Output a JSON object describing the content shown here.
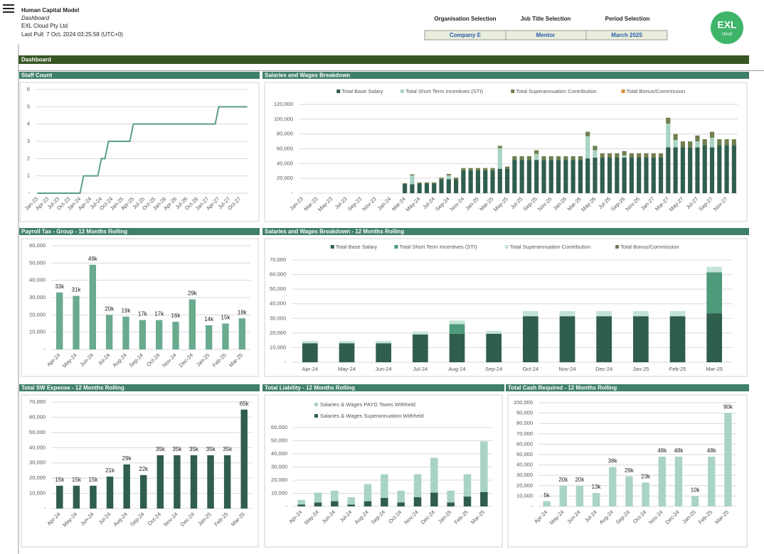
{
  "header": {
    "title": "Human Capital Model",
    "subtitle": "Dashboard",
    "company": "EXL Cloud Pty Ltd",
    "last_pull": "Last Pull: 7 Oct, 2024 03:25:58 (UTC+0)"
  },
  "selections": [
    {
      "label": "Organisation Selection",
      "value": "Company E"
    },
    {
      "label": "Job Title Selection",
      "value": "Mentor"
    },
    {
      "label": "Period Selection",
      "value": "March 2025"
    }
  ],
  "logo": {
    "text": "EXL",
    "subtext": "cloud"
  },
  "section": "Dashboard",
  "chart_data": [
    {
      "type": "line",
      "title": "Staff Count",
      "color": "#5a9e86",
      "grid": true,
      "categories": [
        "Jan-23",
        null,
        null,
        "Apr-23",
        null,
        null,
        "Jul-23",
        null,
        null,
        "Oct-23",
        null,
        null,
        "Jan-24",
        null,
        null,
        "Apr-24",
        null,
        null,
        "Jul-24",
        null,
        null,
        "Oct-24",
        null,
        null,
        "Jan-25",
        null,
        null,
        "Apr-25",
        null,
        null,
        "Jul-25",
        null,
        null,
        "Oct-25",
        null,
        null,
        "Jan-26",
        null,
        null,
        "Apr-26",
        null,
        null,
        "Jul-26",
        null,
        null,
        "Oct-26",
        null,
        null,
        "Jan-27",
        null,
        null,
        "Apr-27",
        null,
        null,
        "Jul-27",
        null,
        null,
        "Oct-27",
        null,
        null
      ],
      "values": [
        0,
        0,
        0,
        0,
        0,
        0,
        0,
        0,
        0,
        0,
        0,
        0,
        0,
        1,
        1,
        1,
        1,
        1,
        2,
        2,
        3,
        3,
        3,
        3,
        3,
        3,
        3,
        4,
        4,
        4,
        4,
        4,
        4,
        4,
        4,
        4,
        4,
        4,
        4,
        4,
        4,
        4,
        4,
        4,
        4,
        4,
        4,
        4,
        4,
        4,
        4,
        5,
        5,
        5,
        5,
        5,
        5,
        5,
        5,
        5
      ],
      "ylim": [
        0,
        6
      ],
      "yticks": [
        {
          "value": 0,
          "label": "-"
        },
        1,
        2,
        3,
        4,
        5,
        6
      ]
    },
    {
      "type": "stacked_bar",
      "title": "Salaries and Wages Breakdown",
      "grid": true,
      "legend": "top",
      "categories": [
        "Jan-23",
        null,
        "Mar-23",
        null,
        "May-23",
        null,
        "Jul-23",
        null,
        "Sep-23",
        null,
        "Nov-23",
        null,
        "Jan-24",
        null,
        "Mar-24",
        null,
        "May-24",
        null,
        "Jul-24",
        null,
        "Sep-24",
        null,
        "Nov-24",
        null,
        "Jan-25",
        null,
        "Mar-25",
        null,
        "May-25",
        null,
        "Jul-25",
        null,
        "Sep-25",
        null,
        "Nov-25",
        null,
        "Jan-26",
        null,
        "Mar-26",
        null,
        "May-26",
        null,
        "Jul-26",
        null,
        "Sep-26",
        null,
        "Nov-26",
        null,
        "Jan-27",
        null,
        "Mar-27",
        null,
        "May-27",
        null,
        "Jul-27",
        null,
        "Sep-27",
        null,
        "Nov-27",
        null
      ],
      "series": [
        {
          "name": "Total Base Salary",
          "color": "#2f5e4c",
          "values": [
            0,
            0,
            0,
            0,
            0,
            0,
            0,
            0,
            0,
            0,
            0,
            0,
            0,
            0,
            12000,
            12000,
            13000,
            13000,
            13000,
            19000,
            19000,
            19000,
            31000,
            31000,
            31000,
            31000,
            31000,
            33000,
            33000,
            45000,
            45000,
            45000,
            45000,
            45000,
            45000,
            45000,
            45000,
            45000,
            45000,
            47000,
            48000,
            48000,
            48000,
            48000,
            48000,
            48000,
            48000,
            48000,
            48000,
            48000,
            62000,
            62000,
            62000,
            62000,
            62000,
            65000,
            62000,
            65000,
            65000,
            65000
          ]
        },
        {
          "name": "Total Short Term Incentives (STI)",
          "color": "#a9d4c3",
          "values": [
            0,
            0,
            0,
            0,
            0,
            0,
            0,
            0,
            0,
            0,
            0,
            0,
            0,
            0,
            0,
            12000,
            0,
            0,
            0,
            0,
            5000,
            0,
            0,
            0,
            0,
            0,
            0,
            28000,
            0,
            0,
            0,
            0,
            8000,
            0,
            0,
            0,
            0,
            0,
            0,
            30000,
            10000,
            0,
            0,
            0,
            3000,
            0,
            0,
            0,
            0,
            0,
            32000,
            10000,
            0,
            0,
            8000,
            0,
            13000,
            0,
            0,
            0
          ]
        },
        {
          "name": "Total Superannuation Contribution",
          "color": "#6f7f4f",
          "values": [
            0,
            0,
            0,
            0,
            0,
            0,
            0,
            0,
            0,
            0,
            0,
            0,
            0,
            0,
            1500,
            1500,
            1500,
            1500,
            1500,
            2000,
            2000,
            2000,
            3000,
            3000,
            3000,
            3000,
            3000,
            3000,
            3000,
            5000,
            5000,
            5000,
            5000,
            5000,
            5000,
            5000,
            5000,
            5000,
            5000,
            6000,
            6000,
            6000,
            6000,
            6000,
            6000,
            6000,
            6000,
            6000,
            6000,
            6000,
            8000,
            8000,
            8000,
            8000,
            8000,
            8000,
            8000,
            8000,
            8000,
            8000
          ]
        },
        {
          "name": "Total Bonus/Commission",
          "color": "#d98c3a",
          "values": [
            0,
            0,
            0,
            0,
            0,
            0,
            0,
            0,
            0,
            0,
            0,
            0,
            0,
            0,
            0,
            0,
            0,
            0,
            0,
            0,
            0,
            0,
            0,
            0,
            0,
            0,
            0,
            0,
            0,
            0,
            0,
            0,
            0,
            0,
            0,
            0,
            0,
            0,
            0,
            0,
            0,
            0,
            0,
            0,
            0,
            0,
            0,
            0,
            0,
            0,
            0,
            0,
            0,
            0,
            0,
            0,
            0,
            0,
            0,
            0
          ]
        }
      ],
      "ylim": [
        0,
        120000
      ],
      "yticks": [
        {
          "value": 0,
          "label": "-"
        },
        {
          "value": 20000,
          "label": "20,000"
        },
        {
          "value": 40000,
          "label": "40,000"
        },
        {
          "value": 60000,
          "label": "60,000"
        },
        {
          "value": 80000,
          "label": "80,000"
        },
        {
          "value": 100000,
          "label": "100,000"
        },
        {
          "value": 120000,
          "label": "120,000"
        }
      ]
    },
    {
      "type": "bar",
      "title": "Payroll Tax - Group - 12 Months Rolling",
      "color": "#6aaa8f",
      "grid": true,
      "categories": [
        "Apr-24",
        "May-24",
        "Jun-24",
        "Jul-24",
        "Aug-24",
        "Sep-24",
        "Oct-24",
        "Nov-24",
        "Dec-24",
        "Jan-25",
        "Feb-25",
        "Mar-25"
      ],
      "values": [
        33000,
        31000,
        49000,
        20000,
        19000,
        17000,
        17000,
        16000,
        29000,
        14000,
        15000,
        18000
      ],
      "value_labels": [
        "33k",
        "31k",
        "49k",
        "20k",
        "19k",
        "17k",
        "17k",
        "16k",
        "29k",
        "14k",
        "15k",
        "18k"
      ],
      "ylim": [
        0,
        60000
      ],
      "yticks": [
        {
          "value": 0,
          "label": "-"
        },
        {
          "value": 10000,
          "label": "10,000"
        },
        {
          "value": 20000,
          "label": "20,000"
        },
        {
          "value": 30000,
          "label": "30,000"
        },
        {
          "value": 40000,
          "label": "40,000"
        },
        {
          "value": 50000,
          "label": "50,000"
        },
        {
          "value": 60000,
          "label": "60,000"
        }
      ]
    },
    {
      "type": "stacked_bar",
      "title": "Salaries and Wages Breakdown - 12 Months Rolling",
      "grid": true,
      "legend": "top",
      "categories": [
        "Apr-24",
        "May-24",
        "Jun-24",
        "Jul-24",
        "Aug-24",
        "Sep-24",
        "Oct-24",
        "Nov-24",
        "Dec-24",
        "Jan-25",
        "Feb-25",
        "Mar-25"
      ],
      "series": [
        {
          "name": "Total Base Salary",
          "color": "#2f5e4c",
          "values": [
            13000,
            13000,
            13000,
            19000,
            19500,
            19500,
            31500,
            31500,
            31500,
            31500,
            31500,
            33500
          ]
        },
        {
          "name": "Total Short Term Incentives (STI)",
          "color": "#4e9a7a",
          "values": [
            0,
            0,
            0,
            0,
            6500,
            0,
            0,
            0,
            0,
            0,
            0,
            28000
          ]
        },
        {
          "name": "Total Superannuation Contribution",
          "color": "#c2e3d6",
          "values": [
            1500,
            1500,
            1500,
            2000,
            2500,
            2000,
            3500,
            3500,
            3500,
            3500,
            3500,
            3800
          ]
        },
        {
          "name": "Total Bonus/Commission",
          "color": "#6f7a4a",
          "values": [
            0,
            0,
            0,
            0,
            0,
            0,
            0,
            0,
            0,
            0,
            0,
            0
          ]
        }
      ],
      "ylim": [
        0,
        70000
      ],
      "yticks": [
        {
          "value": 0,
          "label": "-"
        },
        {
          "value": 10000,
          "label": "10,000"
        },
        {
          "value": 20000,
          "label": "20,000"
        },
        {
          "value": 30000,
          "label": "30,000"
        },
        {
          "value": 40000,
          "label": "40,000"
        },
        {
          "value": 50000,
          "label": "50,000"
        },
        {
          "value": 60000,
          "label": "60,000"
        },
        {
          "value": 70000,
          "label": "70,000"
        }
      ]
    },
    {
      "type": "bar",
      "title": "Total SW Expense - 12 Months Rolling",
      "color": "#2f5e4c",
      "grid": true,
      "categories": [
        "Apr-24",
        "May-24",
        "Jun-24",
        "Jul-24",
        "Aug-24",
        "Sep-24",
        "Oct-24",
        "Nov-24",
        "Dec-24",
        "Jan-25",
        "Feb-25",
        "Mar-25"
      ],
      "values": [
        15000,
        15000,
        15000,
        21000,
        29000,
        22000,
        35000,
        35000,
        35000,
        35000,
        35000,
        65000
      ],
      "value_labels": [
        "15k",
        "15k",
        "15k",
        "21k",
        "29k",
        "22k",
        "35k",
        "35k",
        "35k",
        "35k",
        "35k",
        "65k"
      ],
      "ylim": [
        0,
        70000
      ],
      "yticks": [
        {
          "value": 0,
          "label": "-"
        },
        {
          "value": 10000,
          "label": "10,000"
        },
        {
          "value": 20000,
          "label": "20,000"
        },
        {
          "value": 30000,
          "label": "30,000"
        },
        {
          "value": 40000,
          "label": "40,000"
        },
        {
          "value": 50000,
          "label": "50,000"
        },
        {
          "value": 60000,
          "label": "60,000"
        },
        {
          "value": 70000,
          "label": "70,000"
        }
      ]
    },
    {
      "type": "stacked_bar",
      "title": "Total Liability - 12 Months Rolling",
      "grid": true,
      "legend": "top",
      "categories": [
        "Apr-24",
        "May-24",
        "Jun-24",
        "Jul-24",
        "Aug-24",
        "Sep-24",
        "Oct-24",
        "Nov-24",
        "Dec-24",
        "Jan-25",
        "Feb-25",
        "Mar-25"
      ],
      "series": [
        {
          "name": "Salaries & Wages Superannuation Withheld",
          "color": "#2f5e4c",
          "values": [
            1500,
            3000,
            4000,
            1500,
            4000,
            6500,
            3000,
            7000,
            10500,
            3000,
            7500,
            11000
          ]
        },
        {
          "name": "Salaries & Wages PAYG Taxes Withheld",
          "color": "#a9d4c3",
          "values": [
            3500,
            7500,
            8000,
            5500,
            13000,
            18000,
            9000,
            17500,
            26500,
            9000,
            17000,
            38500
          ]
        }
      ],
      "ylim": [
        0,
        60000
      ],
      "yticks": [
        {
          "value": 0,
          "label": "-"
        },
        {
          "value": 10000,
          "label": "10,000"
        },
        {
          "value": 20000,
          "label": "20,000"
        },
        {
          "value": 30000,
          "label": "30,000"
        },
        {
          "value": 40000,
          "label": "40,000"
        },
        {
          "value": 50000,
          "label": "50,000"
        },
        {
          "value": 60000,
          "label": "60,000"
        }
      ]
    },
    {
      "type": "bar",
      "title": "Total Cash Required - 12 Months Rolling",
      "color": "#a9d4c3",
      "grid": true,
      "categories": [
        "Apr-24",
        "May-24",
        "Jun-24",
        "Jul-24",
        "Aug-24",
        "Sep-24",
        "Oct-24",
        "Nov-24",
        "Dec-24",
        "Jan-25",
        "Feb-25",
        "Mar-25"
      ],
      "values": [
        5000,
        20000,
        20000,
        13000,
        38000,
        29000,
        23000,
        48000,
        48000,
        10000,
        48000,
        90000
      ],
      "value_labels": [
        "5k",
        "20k",
        "20k",
        "13k",
        "38k",
        "29k",
        "23k",
        "48k",
        "48k",
        "10k",
        "48k",
        "90k"
      ],
      "ylim": [
        0,
        100000
      ],
      "yticks": [
        {
          "value": 0,
          "label": "-"
        },
        {
          "value": 10000,
          "label": "10,000"
        },
        {
          "value": 20000,
          "label": "20,000"
        },
        {
          "value": 30000,
          "label": "30,000"
        },
        {
          "value": 40000,
          "label": "40,000"
        },
        {
          "value": 50000,
          "label": "50,000"
        },
        {
          "value": 60000,
          "label": "60,000"
        },
        {
          "value": 70000,
          "label": "70,000"
        },
        {
          "value": 80000,
          "label": "80,000"
        },
        {
          "value": 90000,
          "label": "90,000"
        },
        {
          "value": 100000,
          "label": "100,000"
        }
      ]
    }
  ]
}
